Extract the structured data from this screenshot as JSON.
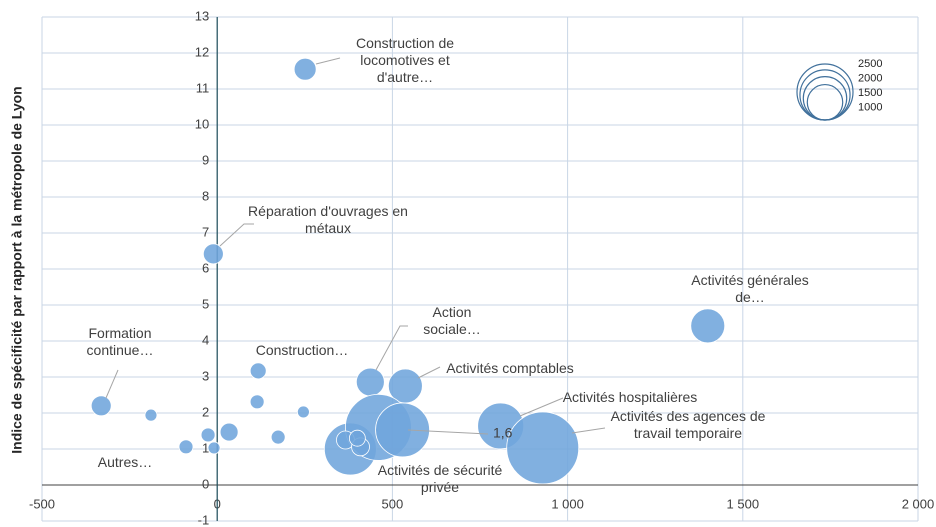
{
  "chart_data": {
    "type": "bubble",
    "y_axis_label": "Indice de spécificité par rapport à la métropole de Lyon",
    "xlim": [
      -500,
      2000
    ],
    "xticks": [
      -500,
      0,
      500,
      {
        "value": 1000,
        "label": "1 000"
      },
      {
        "value": 1500,
        "label": "1 500"
      },
      {
        "value": 2000,
        "label": "2 000"
      }
    ],
    "ylim": [
      -1,
      13
    ],
    "yticks": [
      -1,
      0,
      1,
      2,
      3,
      4,
      5,
      6,
      7,
      8,
      9,
      10,
      11,
      12,
      13
    ],
    "grid": true,
    "color": "#6fa5dc",
    "x": [
      251,
      -11,
      1400,
      -331,
      117,
      437,
      537,
      809,
      929,
      380,
      460,
      -89,
      529,
      -189,
      -26,
      -9,
      34,
      114,
      174,
      246,
      366,
      409,
      400
    ],
    "values": [
      11.55,
      6.42,
      4.42,
      2.2,
      3.17,
      2.86,
      2.75,
      1.64,
      1.03,
      1.0,
      1.6,
      1.06,
      1.53,
      1.94,
      1.39,
      1.03,
      1.47,
      2.31,
      1.33,
      2.03,
      1.25,
      1.06,
      1.3
    ],
    "sizes": [
      386,
      319,
      921,
      319,
      204,
      625,
      921,
      1687,
      4133,
      2156,
      3473,
      156,
      2325,
      115,
      156,
      115,
      258,
      156,
      156,
      115,
      258,
      258,
      204
    ],
    "labels": [
      "Construction de locomotives et d'autre…",
      "Réparation d'ouvrages en métaux",
      "Activités générales de…",
      "Formation continue…",
      "Construction…",
      "Action sociale…",
      "Activités comptables",
      "Activités hospitalières",
      "Activités des agences de travail temporaire",
      "Activités de sécurité privée",
      null,
      "Autres…",
      null,
      null,
      null,
      null,
      null,
      null,
      null,
      null,
      null,
      null,
      null
    ],
    "value_labels": [
      null,
      null,
      null,
      null,
      null,
      null,
      null,
      null,
      null,
      null,
      "1,6",
      null,
      null,
      null,
      null,
      null,
      null,
      null,
      null,
      null,
      null,
      null,
      null
    ],
    "size_legend": [
      2500,
      2000,
      1500,
      1000
    ]
  }
}
